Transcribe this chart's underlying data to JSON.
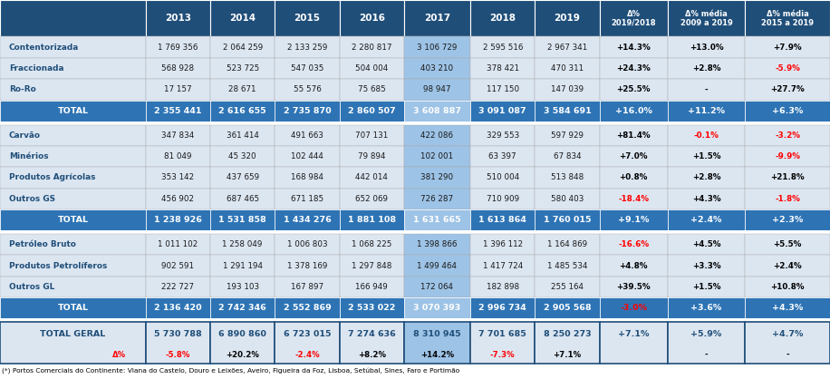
{
  "col_headers": [
    "2013",
    "2014",
    "2015",
    "2016",
    "2017",
    "2018",
    "2019",
    "Δ%\n2019/2018",
    "Δ% média\n2009 a 2019",
    "Δ% média\n2015 a 2019"
  ],
  "row_groups": [
    {
      "rows": [
        {
          "label": "Contentorizada",
          "values": [
            "1 769 356",
            "2 064 259",
            "2 133 259",
            "2 280 817",
            "3 106 729",
            "2 595 516",
            "2 967 341",
            "+14.3%",
            "+13.0%",
            "+7.9%"
          ],
          "delta_colors": [
            "black",
            "black",
            "black",
            "black",
            "black",
            "black",
            "black",
            "black",
            "black",
            "black"
          ]
        },
        {
          "label": "Fraccionada",
          "values": [
            "568 928",
            "523 725",
            "547 035",
            "504 004",
            "403 210",
            "378 421",
            "470 311",
            "+24.3%",
            "+2.8%",
            "-5.9%"
          ],
          "delta_colors": [
            "black",
            "black",
            "black",
            "black",
            "black",
            "black",
            "black",
            "black",
            "black",
            "red"
          ]
        },
        {
          "label": "Ro-Ro",
          "values": [
            "17 157",
            "28 671",
            "55 576",
            "75 685",
            "98 947",
            "117 150",
            "147 039",
            "+25.5%",
            "-",
            "+27.7%"
          ],
          "delta_colors": [
            "black",
            "black",
            "black",
            "black",
            "black",
            "black",
            "black",
            "black",
            "black",
            "black"
          ]
        }
      ],
      "total": {
        "label": "TOTAL",
        "values": [
          "2 355 441",
          "2 616 655",
          "2 735 870",
          "2 860 507",
          "3 608 887",
          "3 091 087",
          "3 584 691",
          "+16.0%",
          "+11.2%",
          "+6.3%"
        ],
        "delta_colors": [
          "black",
          "black",
          "black",
          "black",
          "black",
          "black",
          "black",
          "black",
          "black",
          "black"
        ]
      }
    },
    {
      "rows": [
        {
          "label": "Carvão",
          "values": [
            "347 834",
            "361 414",
            "491 663",
            "707 131",
            "422 086",
            "329 553",
            "597 929",
            "+81.4%",
            "-0.1%",
            "-3.2%"
          ],
          "delta_colors": [
            "black",
            "black",
            "black",
            "black",
            "black",
            "black",
            "black",
            "black",
            "red",
            "red"
          ]
        },
        {
          "label": "Minérios",
          "values": [
            "81 049",
            "45 320",
            "102 444",
            "79 894",
            "102 001",
            "63 397",
            "67 834",
            "+7.0%",
            "+1.5%",
            "-9.9%"
          ],
          "delta_colors": [
            "black",
            "black",
            "black",
            "black",
            "black",
            "black",
            "black",
            "black",
            "black",
            "red"
          ]
        },
        {
          "label": "Produtos Agrícolas",
          "values": [
            "353 142",
            "437 659",
            "168 984",
            "442 014",
            "381 290",
            "510 004",
            "513 848",
            "+0.8%",
            "+2.8%",
            "+21.8%"
          ],
          "delta_colors": [
            "black",
            "black",
            "black",
            "black",
            "black",
            "black",
            "black",
            "black",
            "black",
            "black"
          ]
        },
        {
          "label": "Outros GS",
          "values": [
            "456 902",
            "687 465",
            "671 185",
            "652 069",
            "726 287",
            "710 909",
            "580 403",
            "-18.4%",
            "+4.3%",
            "-1.8%"
          ],
          "delta_colors": [
            "black",
            "black",
            "black",
            "black",
            "black",
            "black",
            "black",
            "red",
            "black",
            "red"
          ],
          "label_sup": "GS"
        }
      ],
      "total": {
        "label": "TOTAL",
        "values": [
          "1 238 926",
          "1 531 858",
          "1 434 276",
          "1 881 108",
          "1 631 665",
          "1 613 864",
          "1 760 015",
          "+9.1%",
          "+2.4%",
          "+2.3%"
        ],
        "delta_colors": [
          "black",
          "black",
          "black",
          "black",
          "black",
          "black",
          "black",
          "black",
          "black",
          "black"
        ]
      }
    },
    {
      "rows": [
        {
          "label": "Petróleo Bruto",
          "values": [
            "1 011 102",
            "1 258 049",
            "1 006 803",
            "1 068 225",
            "1 398 866",
            "1 396 112",
            "1 164 869",
            "-16.6%",
            "+4.5%",
            "+5.5%"
          ],
          "delta_colors": [
            "black",
            "black",
            "black",
            "black",
            "black",
            "black",
            "black",
            "red",
            "black",
            "black"
          ]
        },
        {
          "label": "Produtos Petrolíferos",
          "values": [
            "902 591",
            "1 291 194",
            "1 378 169",
            "1 297 848",
            "1 499 464",
            "1 417 724",
            "1 485 534",
            "+4.8%",
            "+3.3%",
            "+2.4%"
          ],
          "delta_colors": [
            "black",
            "black",
            "black",
            "black",
            "black",
            "black",
            "black",
            "black",
            "black",
            "black"
          ]
        },
        {
          "label": "Outros GL",
          "values": [
            "222 727",
            "193 103",
            "167 897",
            "166 949",
            "172 064",
            "182 898",
            "255 164",
            "+39.5%",
            "+1.5%",
            "+10.8%"
          ],
          "delta_colors": [
            "black",
            "black",
            "black",
            "black",
            "black",
            "black",
            "black",
            "black",
            "black",
            "black"
          ],
          "label_sup": "GL"
        }
      ],
      "total": {
        "label": "TOTAL",
        "values": [
          "2 136 420",
          "2 742 346",
          "2 552 869",
          "2 533 022",
          "3 070 393",
          "2 996 734",
          "2 905 568",
          "-3.0%",
          "+3.6%",
          "+4.3%"
        ],
        "delta_colors": [
          "black",
          "black",
          "black",
          "black",
          "black",
          "black",
          "black",
          "red",
          "black",
          "black"
        ]
      }
    }
  ],
  "grand_total": {
    "label": "TOTAL GERAL",
    "values": [
      "5 730 788",
      "6 890 860",
      "6 723 015",
      "7 274 636",
      "8 310 945",
      "7 701 685",
      "8 250 273",
      "+7.1%",
      "+5.9%",
      "+4.7%"
    ],
    "delta_row": [
      "-5.8%",
      "+20.2%",
      "-2.4%",
      "+8.2%",
      "+14.2%",
      "-7.3%",
      "+7.1%",
      "",
      "-",
      "-"
    ],
    "delta_row_colors": [
      "red",
      "black",
      "red",
      "black",
      "black",
      "red",
      "black",
      "black",
      "black",
      "black"
    ],
    "delta_colors": [
      "black",
      "black",
      "black",
      "black",
      "black",
      "black",
      "black",
      "black",
      "black",
      "black"
    ]
  },
  "footnote": "(*) Portos Comerciais do Continente: Viana do Castelo, Douro e Leixões, Aveiro, Figueira da Foz, Lisboa, Setúbal, Sines, Faro e Portimão",
  "header_bg": "#1f4e79",
  "header_text": "white",
  "total_bg": "#2e74b5",
  "total_text": "white",
  "grand_total_bg": "#dce6f1",
  "grand_total_text": "#1f4e79",
  "grand_total_border": "#1f4e79",
  "row_bg": "#dce6f1",
  "row_bg_alt": "#c5d9f1",
  "highlight_col_2017_bg": "#9dc3e6",
  "highlight_col_2017_total_bg": "#9dc3e6",
  "label_col_bg": "#dce6f1",
  "label_text": "#1f4e79"
}
